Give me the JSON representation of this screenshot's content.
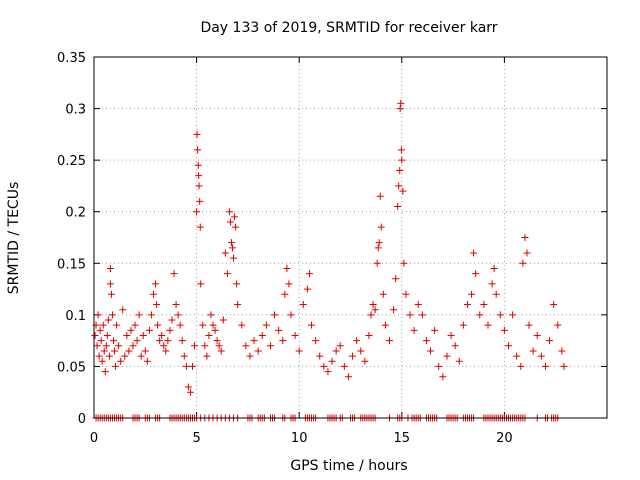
{
  "chart_data": {
    "type": "scatter",
    "title": "Day 133 of 2019, SRMTID for receiver karr",
    "xlabel": "GPS time / hours",
    "ylabel": "SRMTID / TECUs",
    "xlim": [
      0,
      25
    ],
    "ylim": [
      0,
      0.35
    ],
    "xticks": [
      0,
      5,
      10,
      15,
      20
    ],
    "xtick_labels": [
      "0",
      "5",
      "10",
      "15",
      "20"
    ],
    "yticks": [
      0,
      0.05,
      0.1,
      0.15,
      0.2,
      0.25,
      0.3,
      0.35
    ],
    "ytick_labels": [
      "0",
      "0.05",
      "0.1",
      "0.15",
      "0.2",
      "0.25",
      "0.3",
      "0.35"
    ],
    "grid": true,
    "marker": "+",
    "color": "#e00000",
    "series": [
      {
        "name": "SRMTID",
        "points": [
          [
            0.05,
            0.08
          ],
          [
            0.1,
            0.09
          ],
          [
            0.15,
            0.07
          ],
          [
            0.2,
            0.1
          ],
          [
            0.25,
            0.06
          ],
          [
            0.3,
            0.085
          ],
          [
            0.35,
            0.075
          ],
          [
            0.4,
            0.055
          ],
          [
            0.45,
            0.09
          ],
          [
            0.5,
            0.065
          ],
          [
            0.55,
            0.045
          ],
          [
            0.6,
            0.07
          ],
          [
            0.65,
            0.08
          ],
          [
            0.7,
            0.095
          ],
          [
            0.75,
            0.06
          ],
          [
            0.8,
            0.13
          ],
          [
            0.8,
            0.145
          ],
          [
            0.85,
            0.12
          ],
          [
            0.9,
            0.1
          ],
          [
            0.95,
            0.075
          ],
          [
            1.0,
            0.065
          ],
          [
            1.05,
            0.05
          ],
          [
            1.1,
            0.09
          ],
          [
            1.2,
            0.07
          ],
          [
            1.3,
            0.055
          ],
          [
            1.4,
            0.105
          ],
          [
            1.5,
            0.06
          ],
          [
            1.6,
            0.08
          ],
          [
            1.7,
            0.065
          ],
          [
            1.8,
            0.085
          ],
          [
            1.9,
            0.07
          ],
          [
            2.0,
            0.09
          ],
          [
            2.1,
            0.075
          ],
          [
            2.2,
            0.1
          ],
          [
            2.3,
            0.06
          ],
          [
            2.4,
            0.08
          ],
          [
            2.5,
            0.065
          ],
          [
            2.6,
            0.055
          ],
          [
            2.7,
            0.085
          ],
          [
            2.8,
            0.1
          ],
          [
            2.9,
            0.12
          ],
          [
            3.0,
            0.13
          ],
          [
            3.05,
            0.11
          ],
          [
            3.1,
            0.09
          ],
          [
            3.2,
            0.075
          ],
          [
            3.3,
            0.08
          ],
          [
            3.4,
            0.07
          ],
          [
            3.5,
            0.065
          ],
          [
            3.6,
            0.075
          ],
          [
            3.7,
            0.085
          ],
          [
            3.8,
            0.095
          ],
          [
            3.9,
            0.14
          ],
          [
            4.0,
            0.11
          ],
          [
            4.1,
            0.1
          ],
          [
            4.2,
            0.09
          ],
          [
            4.3,
            0.075
          ],
          [
            4.4,
            0.06
          ],
          [
            4.5,
            0.05
          ],
          [
            4.6,
            0.03
          ],
          [
            4.7,
            0.025
          ],
          [
            4.8,
            0.05
          ],
          [
            4.9,
            0.07
          ],
          [
            5.0,
            0.2
          ],
          [
            5.02,
            0.275
          ],
          [
            5.05,
            0.26
          ],
          [
            5.08,
            0.245
          ],
          [
            5.1,
            0.235
          ],
          [
            5.12,
            0.225
          ],
          [
            5.15,
            0.21
          ],
          [
            5.18,
            0.185
          ],
          [
            5.2,
            0.13
          ],
          [
            5.3,
            0.09
          ],
          [
            5.4,
            0.07
          ],
          [
            5.5,
            0.06
          ],
          [
            5.6,
            0.08
          ],
          [
            5.7,
            0.1
          ],
          [
            5.8,
            0.09
          ],
          [
            5.9,
            0.085
          ],
          [
            6.0,
            0.075
          ],
          [
            6.1,
            0.07
          ],
          [
            6.2,
            0.065
          ],
          [
            6.3,
            0.095
          ],
          [
            6.4,
            0.16
          ],
          [
            6.5,
            0.14
          ],
          [
            6.6,
            0.2
          ],
          [
            6.65,
            0.19
          ],
          [
            6.7,
            0.17
          ],
          [
            6.75,
            0.165
          ],
          [
            6.8,
            0.155
          ],
          [
            6.85,
            0.195
          ],
          [
            6.9,
            0.185
          ],
          [
            6.95,
            0.13
          ],
          [
            7.0,
            0.11
          ],
          [
            7.2,
            0.09
          ],
          [
            7.4,
            0.07
          ],
          [
            7.6,
            0.06
          ],
          [
            7.8,
            0.075
          ],
          [
            8.0,
            0.065
          ],
          [
            8.2,
            0.08
          ],
          [
            8.4,
            0.09
          ],
          [
            8.6,
            0.07
          ],
          [
            8.8,
            0.1
          ],
          [
            9.0,
            0.085
          ],
          [
            9.2,
            0.075
          ],
          [
            9.3,
            0.12
          ],
          [
            9.4,
            0.145
          ],
          [
            9.5,
            0.13
          ],
          [
            9.6,
            0.1
          ],
          [
            9.8,
            0.08
          ],
          [
            10.0,
            0.065
          ],
          [
            10.2,
            0.11
          ],
          [
            10.4,
            0.125
          ],
          [
            10.5,
            0.14
          ],
          [
            10.6,
            0.09
          ],
          [
            10.8,
            0.075
          ],
          [
            11.0,
            0.06
          ],
          [
            11.2,
            0.05
          ],
          [
            11.4,
            0.045
          ],
          [
            11.6,
            0.055
          ],
          [
            11.8,
            0.065
          ],
          [
            12.0,
            0.07
          ],
          [
            12.2,
            0.05
          ],
          [
            12.4,
            0.04
          ],
          [
            12.6,
            0.06
          ],
          [
            12.8,
            0.075
          ],
          [
            13.0,
            0.065
          ],
          [
            13.2,
            0.055
          ],
          [
            13.4,
            0.08
          ],
          [
            13.5,
            0.1
          ],
          [
            13.6,
            0.11
          ],
          [
            13.7,
            0.105
          ],
          [
            13.8,
            0.15
          ],
          [
            13.85,
            0.165
          ],
          [
            13.9,
            0.17
          ],
          [
            13.95,
            0.215
          ],
          [
            14.0,
            0.185
          ],
          [
            14.1,
            0.12
          ],
          [
            14.2,
            0.09
          ],
          [
            14.4,
            0.075
          ],
          [
            14.6,
            0.105
          ],
          [
            14.7,
            0.135
          ],
          [
            14.8,
            0.205
          ],
          [
            14.85,
            0.225
          ],
          [
            14.9,
            0.24
          ],
          [
            14.92,
            0.3
          ],
          [
            14.95,
            0.305
          ],
          [
            14.98,
            0.26
          ],
          [
            15.0,
            0.25
          ],
          [
            15.05,
            0.22
          ],
          [
            15.1,
            0.15
          ],
          [
            15.2,
            0.12
          ],
          [
            15.4,
            0.1
          ],
          [
            15.6,
            0.085
          ],
          [
            15.8,
            0.11
          ],
          [
            16.0,
            0.1
          ],
          [
            16.2,
            0.075
          ],
          [
            16.4,
            0.065
          ],
          [
            16.6,
            0.085
          ],
          [
            16.8,
            0.05
          ],
          [
            17.0,
            0.04
          ],
          [
            17.2,
            0.06
          ],
          [
            17.4,
            0.08
          ],
          [
            17.6,
            0.07
          ],
          [
            17.8,
            0.055
          ],
          [
            18.0,
            0.09
          ],
          [
            18.2,
            0.11
          ],
          [
            18.4,
            0.12
          ],
          [
            18.5,
            0.16
          ],
          [
            18.6,
            0.14
          ],
          [
            18.8,
            0.1
          ],
          [
            19.0,
            0.11
          ],
          [
            19.2,
            0.09
          ],
          [
            19.4,
            0.13
          ],
          [
            19.5,
            0.145
          ],
          [
            19.6,
            0.12
          ],
          [
            19.8,
            0.1
          ],
          [
            20.0,
            0.085
          ],
          [
            20.2,
            0.07
          ],
          [
            20.4,
            0.1
          ],
          [
            20.6,
            0.06
          ],
          [
            20.8,
            0.05
          ],
          [
            20.9,
            0.15
          ],
          [
            21.0,
            0.175
          ],
          [
            21.1,
            0.16
          ],
          [
            21.2,
            0.09
          ],
          [
            21.4,
            0.065
          ],
          [
            21.6,
            0.08
          ],
          [
            21.8,
            0.06
          ],
          [
            22.0,
            0.05
          ],
          [
            22.2,
            0.075
          ],
          [
            22.4,
            0.11
          ],
          [
            22.6,
            0.09
          ],
          [
            22.8,
            0.065
          ],
          [
            22.9,
            0.05
          ]
        ],
        "zero_points": [
          0.1,
          0.2,
          0.3,
          0.4,
          0.5,
          0.6,
          0.7,
          0.8,
          0.9,
          1.0,
          1.1,
          1.2,
          1.3,
          1.4,
          1.9,
          2.0,
          2.1,
          2.2,
          2.5,
          2.6,
          2.7,
          3.0,
          3.1,
          3.2,
          3.7,
          3.8,
          3.9,
          4.0,
          4.1,
          4.2,
          4.3,
          4.4,
          4.5,
          4.6,
          4.7,
          4.8,
          4.9,
          5.0,
          5.2,
          5.4,
          5.6,
          5.8,
          6.0,
          6.2,
          6.4,
          6.6,
          6.8,
          7.0,
          7.5,
          7.6,
          7.7,
          8.0,
          8.1,
          8.2,
          8.3,
          8.6,
          8.7,
          8.8,
          9.2,
          9.3,
          9.6,
          9.7,
          9.8,
          10.3,
          10.4,
          10.5,
          10.6,
          10.7,
          10.8,
          11.4,
          11.5,
          11.6,
          11.7,
          11.8,
          12.0,
          12.1,
          12.5,
          12.6,
          12.7,
          13.0,
          13.1,
          13.2,
          13.3,
          13.4,
          13.5,
          13.6,
          13.7,
          14.4,
          14.8,
          14.9,
          15.0,
          15.3,
          15.5,
          15.6,
          15.7,
          15.8,
          15.9,
          16.2,
          16.3,
          16.4,
          16.5,
          16.6,
          16.7,
          17.2,
          17.3,
          17.4,
          17.5,
          17.6,
          17.7,
          18.0,
          18.1,
          18.2,
          18.3,
          18.4,
          18.5,
          19.0,
          19.1,
          19.2,
          19.3,
          19.4,
          19.5,
          19.6,
          19.7,
          19.8,
          19.9,
          20.0,
          20.1,
          20.2,
          20.3,
          20.4,
          20.5,
          20.6,
          20.7,
          20.8,
          20.9,
          21.0,
          21.6,
          22.0,
          22.1,
          22.3,
          22.4,
          22.5,
          22.6
        ]
      }
    ]
  }
}
